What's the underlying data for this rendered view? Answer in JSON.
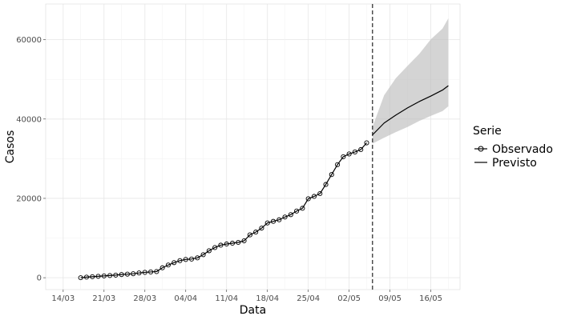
{
  "chart_data": {
    "type": "line",
    "xlabel": "Data",
    "ylabel": "Casos",
    "xlim": [
      "2020-03-11",
      "2020-05-21"
    ],
    "ylim": [
      -3000,
      69000
    ],
    "grid": true,
    "legend_placement": "right",
    "y_ticks": [
      0,
      20000,
      40000,
      60000
    ],
    "y_tick_labels": [
      "0",
      "20000",
      "40000",
      "60000"
    ],
    "x_ticks": [
      "2020-03-14",
      "2020-03-21",
      "2020-03-28",
      "2020-04-04",
      "2020-04-11",
      "2020-04-18",
      "2020-04-25",
      "2020-05-02",
      "2020-05-09",
      "2020-05-16"
    ],
    "x_tick_labels": [
      "14/03",
      "21/03",
      "28/03",
      "04/04",
      "11/04",
      "18/04",
      "25/04",
      "02/05",
      "09/05",
      "16/05"
    ],
    "vline": "2020-05-06",
    "legend": {
      "title": "Serie",
      "entries": [
        "Observado",
        "Previsto"
      ]
    },
    "series": [
      {
        "name": "Observado",
        "style": "line-points",
        "color": "#000000",
        "x": [
          "2020-03-17",
          "2020-03-18",
          "2020-03-19",
          "2020-03-20",
          "2020-03-21",
          "2020-03-22",
          "2020-03-23",
          "2020-03-24",
          "2020-03-25",
          "2020-03-26",
          "2020-03-27",
          "2020-03-28",
          "2020-03-29",
          "2020-03-30",
          "2020-03-31",
          "2020-04-01",
          "2020-04-02",
          "2020-04-03",
          "2020-04-04",
          "2020-04-05",
          "2020-04-06",
          "2020-04-07",
          "2020-04-08",
          "2020-04-09",
          "2020-04-10",
          "2020-04-11",
          "2020-04-12",
          "2020-04-13",
          "2020-04-14",
          "2020-04-15",
          "2020-04-16",
          "2020-04-17",
          "2020-04-18",
          "2020-04-19",
          "2020-04-20",
          "2020-04-21",
          "2020-04-22",
          "2020-04-23",
          "2020-04-24",
          "2020-04-25",
          "2020-04-26",
          "2020-04-27",
          "2020-04-28",
          "2020-04-29",
          "2020-04-30",
          "2020-05-01",
          "2020-05-02",
          "2020-05-03",
          "2020-05-04",
          "2020-05-05"
        ],
        "y": [
          0,
          150,
          250,
          350,
          450,
          550,
          650,
          800,
          900,
          1000,
          1200,
          1350,
          1450,
          1550,
          2500,
          3200,
          3800,
          4300,
          4600,
          4700,
          5000,
          5800,
          6800,
          7600,
          8200,
          8500,
          8700,
          8900,
          9300,
          10800,
          11500,
          12500,
          13800,
          14200,
          14600,
          15300,
          15900,
          16800,
          17500,
          19900,
          20500,
          21200,
          23500,
          26000,
          28500,
          30500,
          31200,
          31700,
          32300,
          34000
        ]
      },
      {
        "name": "Previsto",
        "style": "line-ribbon",
        "color": "#000000",
        "ribbon_color": "#bdbdbd",
        "x": [
          "2020-05-06",
          "2020-05-08",
          "2020-05-10",
          "2020-05-12",
          "2020-05-14",
          "2020-05-16",
          "2020-05-18",
          "2020-05-19"
        ],
        "y": [
          36000,
          39000,
          41000,
          42800,
          44400,
          45800,
          47300,
          48400
        ],
        "lower": [
          33800,
          35300,
          36700,
          38000,
          39500,
          40800,
          42000,
          43200
        ],
        "upper": [
          38000,
          46000,
          50300,
          53400,
          56400,
          60100,
          62800,
          65400
        ]
      }
    ]
  }
}
